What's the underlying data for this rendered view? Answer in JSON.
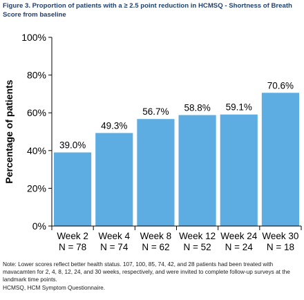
{
  "figure": {
    "title": "Figure 3. Proportion of patients with a ≥ 2.5 point reduction in HCMSQ - Shortness of Breath Score from baseline"
  },
  "chart_data": {
    "type": "bar",
    "categories": [
      "Week 2",
      "Week 4",
      "Week 8",
      "Week 12",
      "Week 24",
      "Week 30"
    ],
    "n_labels": [
      "N = 78",
      "N = 74",
      "N = 62",
      "N = 52",
      "N = 24",
      "N = 18"
    ],
    "values": [
      39.0,
      49.3,
      56.7,
      58.8,
      59.1,
      70.6
    ],
    "value_labels": [
      "39.0%",
      "49.3%",
      "56.7%",
      "58.8%",
      "59.1%",
      "70.6%"
    ],
    "ylabel": "Percentage of patients",
    "xlabel": "",
    "ylim": [
      0,
      100
    ],
    "yticks": [
      0,
      20,
      40,
      60,
      80,
      100
    ],
    "ytick_labels": [
      "0%",
      "20%",
      "40%",
      "60%",
      "80%",
      "100%"
    ],
    "grid": false,
    "bar_color": "#5dade2"
  },
  "notes": {
    "line1": "Note: Lower scores reflect better health status. 107, 100, 85, 74, 42, and 28 patients had been treated with mavacamten for 2, 4, 8, 12, 24, and 30 weeks, respectively, and were invited to complete follow-up surveys at the landmark time points.",
    "line2": "HCMSQ, HCM Symptom Questionnaire."
  }
}
